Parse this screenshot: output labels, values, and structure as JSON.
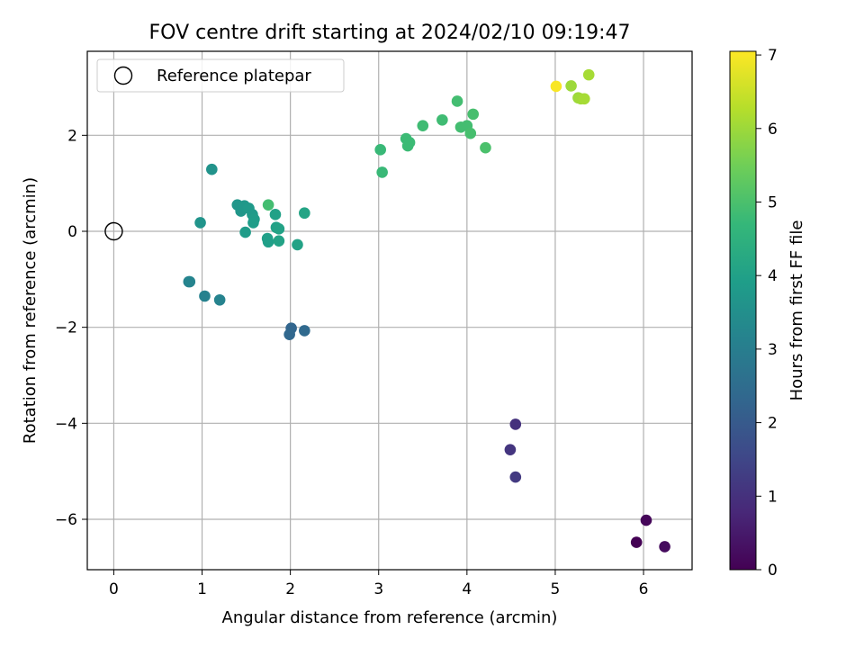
{
  "chart_data": {
    "type": "scatter",
    "title": "FOV centre drift starting at 2024/02/10 09:19:47",
    "xlabel": "Angular distance from reference (arcmin)",
    "ylabel": "Rotation from reference (arcmin)",
    "xlim": [
      -0.3,
      6.55
    ],
    "ylim": [
      -7.05,
      3.75
    ],
    "xticks": [
      0,
      1,
      2,
      3,
      4,
      5,
      6
    ],
    "yticks": [
      -6,
      -4,
      -2,
      0,
      2
    ],
    "grid": true,
    "legend": {
      "placement": "top-left",
      "entries": [
        "Reference platepar"
      ]
    },
    "reference": {
      "x": 0,
      "y": 0
    },
    "colorbar": {
      "label": "Hours from first FF file",
      "range": [
        0,
        7.05
      ],
      "ticks": [
        0,
        1,
        2,
        3,
        4,
        5,
        6,
        7
      ],
      "colormap": "viridis"
    },
    "points": [
      {
        "x": 5.92,
        "y": -6.48,
        "t": 0.0
      },
      {
        "x": 6.03,
        "y": -6.02,
        "t": 0.1
      },
      {
        "x": 6.24,
        "y": -6.57,
        "t": 0.2
      },
      {
        "x": 4.55,
        "y": -4.02,
        "t": 1.0
      },
      {
        "x": 4.49,
        "y": -4.55,
        "t": 1.1
      },
      {
        "x": 4.55,
        "y": -5.12,
        "t": 1.2
      },
      {
        "x": 2.01,
        "y": -2.02,
        "t": 2.3
      },
      {
        "x": 1.99,
        "y": -2.15,
        "t": 2.35
      },
      {
        "x": 2.16,
        "y": -2.07,
        "t": 2.4
      },
      {
        "x": 0.85,
        "y": -1.05,
        "t": 3.1
      },
      {
        "x": 1.03,
        "y": -1.35,
        "t": 3.1
      },
      {
        "x": 1.2,
        "y": -1.43,
        "t": 3.15
      },
      {
        "x": 0.86,
        "y": -1.05,
        "t": 3.2
      },
      {
        "x": 1.11,
        "y": 1.29,
        "t": 3.6
      },
      {
        "x": 0.98,
        "y": 0.18,
        "t": 3.65
      },
      {
        "x": 1.4,
        "y": 0.55,
        "t": 3.7
      },
      {
        "x": 1.44,
        "y": 0.42,
        "t": 3.7
      },
      {
        "x": 1.48,
        "y": 0.53,
        "t": 3.75
      },
      {
        "x": 1.53,
        "y": 0.48,
        "t": 3.8
      },
      {
        "x": 1.57,
        "y": 0.35,
        "t": 3.8
      },
      {
        "x": 1.59,
        "y": 0.25,
        "t": 3.85
      },
      {
        "x": 1.49,
        "y": -0.02,
        "t": 3.85
      },
      {
        "x": 1.58,
        "y": 0.18,
        "t": 3.9
      },
      {
        "x": 1.74,
        "y": -0.15,
        "t": 3.95
      },
      {
        "x": 1.75,
        "y": -0.22,
        "t": 3.95
      },
      {
        "x": 1.83,
        "y": 0.35,
        "t": 4.0
      },
      {
        "x": 1.84,
        "y": 0.08,
        "t": 4.0
      },
      {
        "x": 1.87,
        "y": 0.05,
        "t": 4.05
      },
      {
        "x": 1.87,
        "y": -0.2,
        "t": 4.05
      },
      {
        "x": 2.08,
        "y": -0.28,
        "t": 4.05
      },
      {
        "x": 2.16,
        "y": 0.38,
        "t": 4.1
      },
      {
        "x": 1.75,
        "y": 0.55,
        "t": 4.9
      },
      {
        "x": 3.02,
        "y": 1.7,
        "t": 4.75
      },
      {
        "x": 3.04,
        "y": 1.23,
        "t": 4.75
      },
      {
        "x": 3.31,
        "y": 1.93,
        "t": 4.8
      },
      {
        "x": 3.33,
        "y": 1.78,
        "t": 4.8
      },
      {
        "x": 3.35,
        "y": 1.85,
        "t": 4.8
      },
      {
        "x": 3.5,
        "y": 2.2,
        "t": 4.85
      },
      {
        "x": 3.72,
        "y": 2.32,
        "t": 4.85
      },
      {
        "x": 3.89,
        "y": 2.71,
        "t": 4.9
      },
      {
        "x": 3.93,
        "y": 2.17,
        "t": 4.9
      },
      {
        "x": 4.0,
        "y": 2.2,
        "t": 4.9
      },
      {
        "x": 4.04,
        "y": 2.04,
        "t": 4.95
      },
      {
        "x": 4.07,
        "y": 2.44,
        "t": 4.95
      },
      {
        "x": 4.21,
        "y": 1.74,
        "t": 5.0
      },
      {
        "x": 5.01,
        "y": 3.02,
        "t": 7.0
      },
      {
        "x": 5.18,
        "y": 3.03,
        "t": 6.0
      },
      {
        "x": 5.26,
        "y": 2.78,
        "t": 6.0
      },
      {
        "x": 5.29,
        "y": 2.76,
        "t": 6.05
      },
      {
        "x": 5.33,
        "y": 2.76,
        "t": 6.1
      },
      {
        "x": 5.38,
        "y": 3.26,
        "t": 6.1
      }
    ]
  }
}
